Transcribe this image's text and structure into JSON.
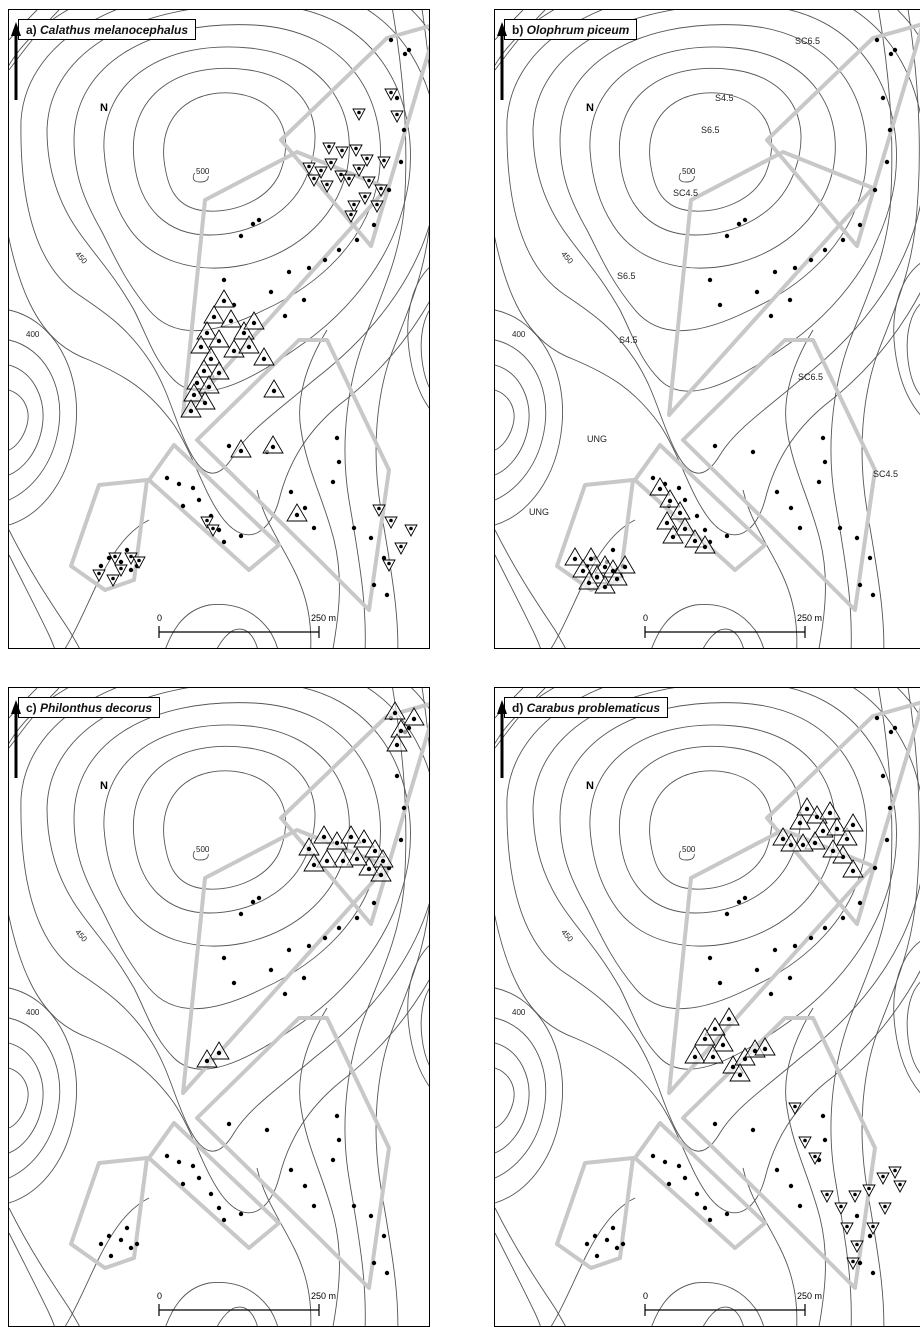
{
  "panels": [
    {
      "id": "a",
      "letter": "a)",
      "species": "Calathus melanocephalus"
    },
    {
      "id": "b",
      "letter": "b)",
      "species": "Olophrum piceum"
    },
    {
      "id": "c",
      "letter": "c)",
      "species": "Philonthus decorus"
    },
    {
      "id": "d",
      "letter": "d)",
      "species": "Carabus problematicus"
    }
  ],
  "map": {
    "north_label": "N",
    "contour_labels": {
      "summit": "500",
      "mid": "450",
      "low": "400"
    },
    "scale": {
      "zero": "0",
      "max": "250 m"
    },
    "treatment_labels": [
      "SC6.5",
      "S4.5",
      "S6.5",
      "SC4.5",
      "S6.5",
      "S4.5",
      "SC6.5",
      "UNG",
      "UNG",
      "SC4.5"
    ]
  },
  "colors": {
    "contour": "#555555",
    "plot_outline": "#c8c8c8",
    "marker": "#000000",
    "frame": "#000000"
  },
  "legend_symbols": {
    "site": "filled-dot",
    "increase": "triangle-up",
    "decrease": "triangle-down"
  }
}
